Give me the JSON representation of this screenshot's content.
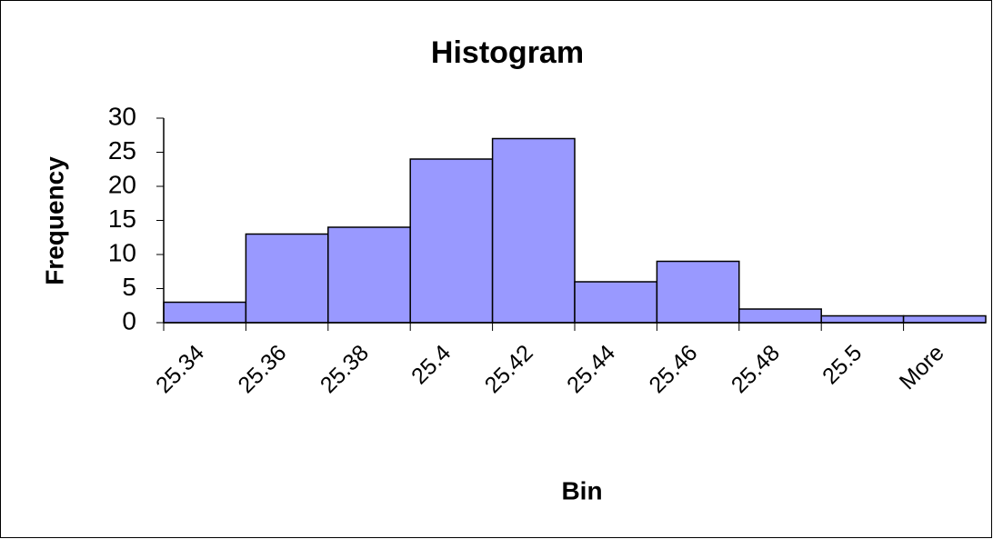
{
  "chart_data": {
    "type": "bar",
    "title": "Histogram",
    "x_label": "Bin",
    "y_label": "Frequency",
    "categories": [
      "25.34",
      "25.36",
      "25.38",
      "25.4",
      "25.42",
      "25.44",
      "25.46",
      "25.48",
      "25.5",
      "More"
    ],
    "values": [
      3,
      13,
      14,
      24,
      27,
      6,
      9,
      2,
      1,
      1
    ],
    "color": "#9999ff",
    "ylim": [
      0,
      30
    ],
    "yticks": [
      0,
      5,
      10,
      15,
      20,
      25,
      30
    ],
    "grid": false
  }
}
